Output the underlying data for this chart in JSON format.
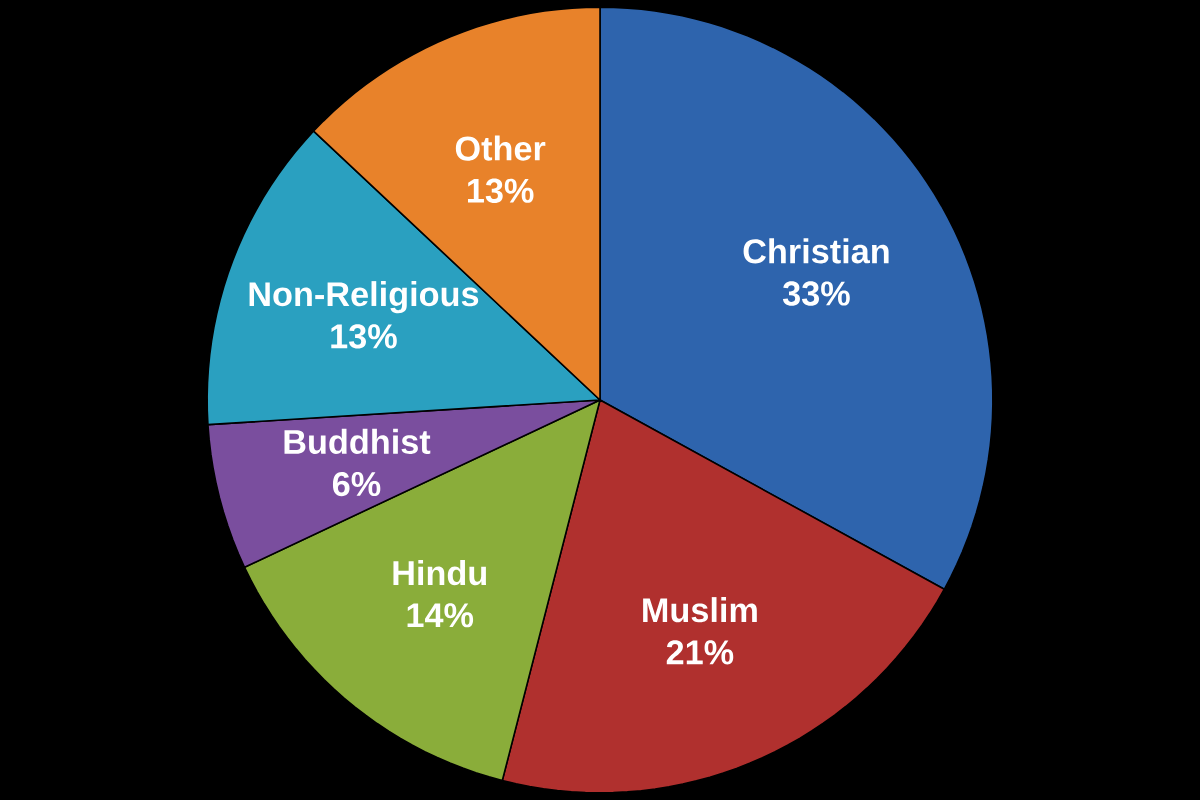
{
  "chart_data": {
    "type": "pie",
    "categories": [
      "Christian",
      "Muslim",
      "Hindu",
      "Buddhist",
      "Non-Religious",
      "Other"
    ],
    "values": [
      33,
      21,
      14,
      6,
      13,
      13
    ],
    "value_labels": [
      "33%",
      "21%",
      "14%",
      "6%",
      "13%",
      "13%"
    ],
    "colors": [
      "#2e64ad",
      "#b0302e",
      "#8aad3a",
      "#7a4e9e",
      "#2aa0c0",
      "#e8822a"
    ]
  }
}
